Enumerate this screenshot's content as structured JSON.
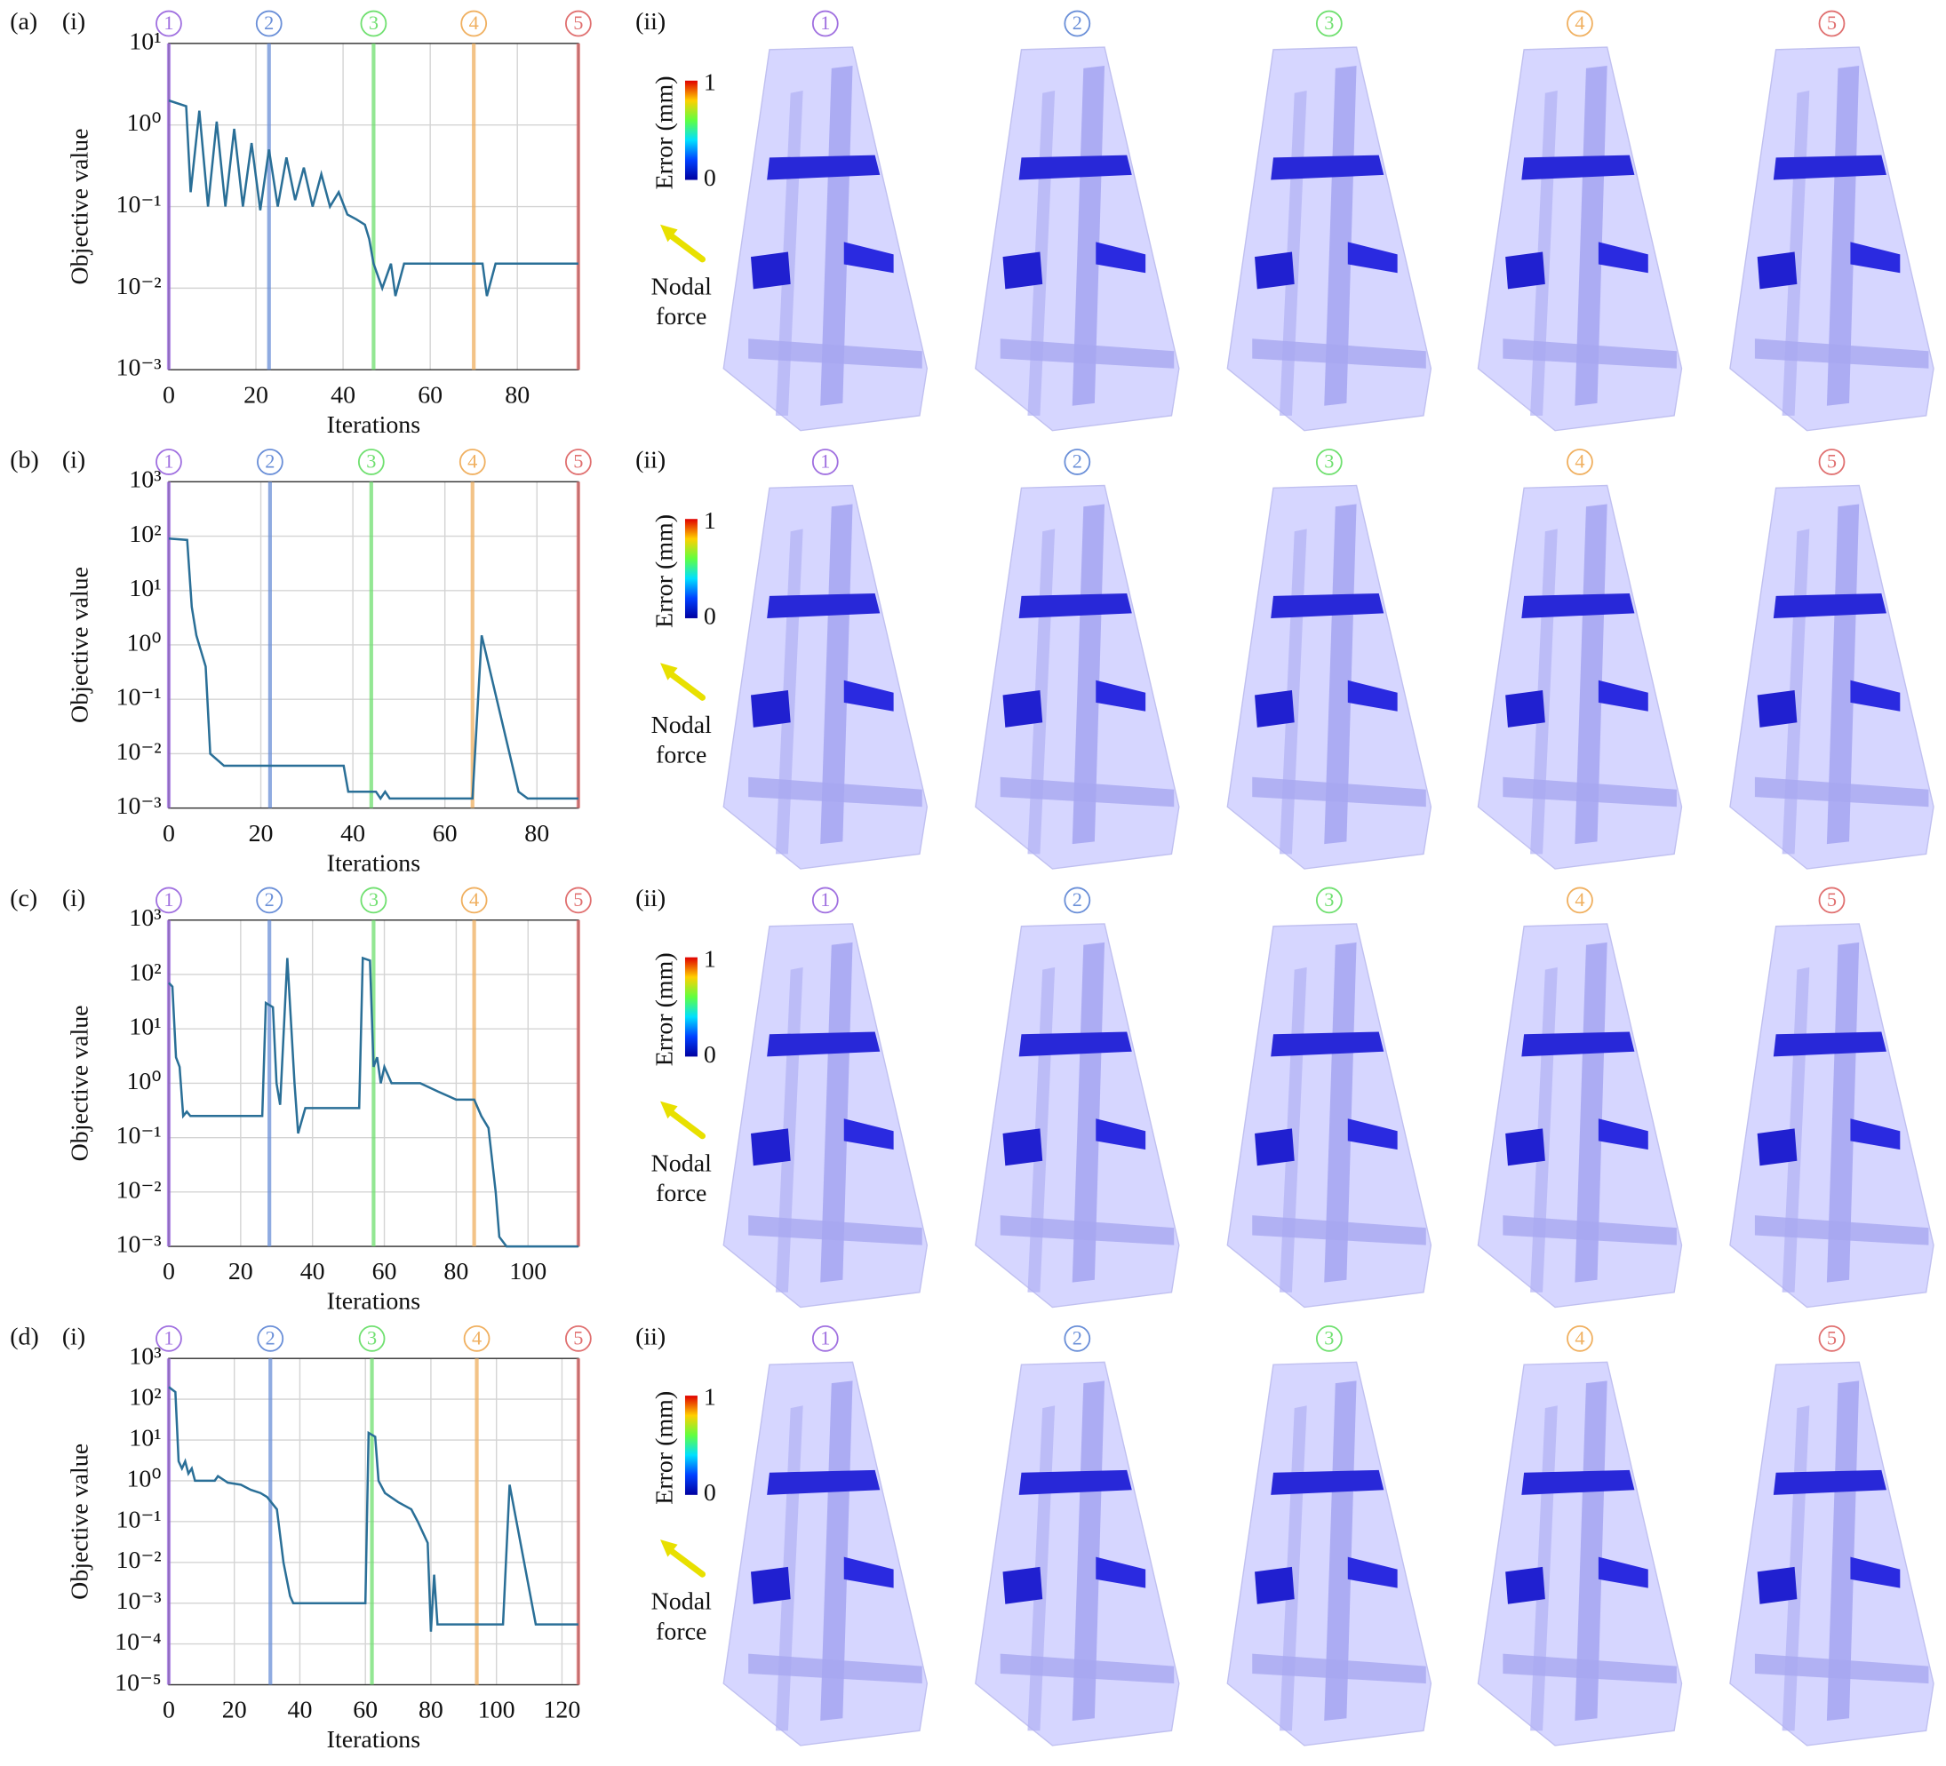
{
  "chart_data": [
    {
      "type": "line",
      "panel": "(a)",
      "subpanels": [
        "(i)",
        "(ii)"
      ],
      "xlabel": "Iterations",
      "ylabel": "Objective value",
      "yscale": "log",
      "grid": true,
      "color": "#2a6f97",
      "xlim": [
        0,
        94
      ],
      "xticks": [
        0,
        20,
        40,
        60,
        80
      ],
      "ylim": [
        0.001,
        10
      ],
      "yticks": [
        {
          "value": 0.001,
          "label": "10⁻³"
        },
        {
          "value": 0.01,
          "label": "10⁻²"
        },
        {
          "value": 0.1,
          "label": "10⁻¹"
        },
        {
          "value": 1,
          "label": "10⁰"
        },
        {
          "value": 10,
          "label": "10¹"
        }
      ],
      "markers": [
        {
          "label": "1",
          "x": 0,
          "color": "#a070e0"
        },
        {
          "label": "2",
          "x": 23,
          "color": "#6a8fd8"
        },
        {
          "label": "3",
          "x": 47,
          "color": "#70e070"
        },
        {
          "label": "4",
          "x": 70,
          "color": "#f0b060"
        },
        {
          "label": "5",
          "x": 94,
          "color": "#e07070"
        }
      ],
      "colorbar": {
        "label": "Error (mm)",
        "max": "1",
        "min": "0"
      },
      "legend": "Nodal force",
      "x": [
        0,
        4,
        5,
        7,
        9,
        11,
        13,
        15,
        17,
        19,
        21,
        23,
        25,
        27,
        29,
        31,
        33,
        35,
        37,
        39,
        41,
        43,
        45,
        46,
        47,
        49,
        51,
        52,
        54,
        72,
        73,
        75,
        94
      ],
      "values": [
        2,
        1.7,
        0.15,
        1.5,
        0.1,
        1.1,
        0.1,
        0.9,
        0.1,
        0.6,
        0.09,
        0.5,
        0.1,
        0.4,
        0.12,
        0.3,
        0.1,
        0.25,
        0.1,
        0.15,
        0.08,
        0.07,
        0.06,
        0.04,
        0.02,
        0.01,
        0.02,
        0.008,
        0.02,
        0.02,
        0.008,
        0.02,
        0.02
      ]
    },
    {
      "type": "line",
      "panel": "(b)",
      "subpanels": [
        "(i)",
        "(ii)"
      ],
      "xlabel": "Iterations",
      "ylabel": "Objective value",
      "yscale": "log",
      "grid": true,
      "color": "#2a6f97",
      "xlim": [
        0,
        89
      ],
      "xticks": [
        0,
        20,
        40,
        60,
        80
      ],
      "ylim": [
        0.001,
        1000
      ],
      "yticks": [
        {
          "value": 0.001,
          "label": "10⁻³"
        },
        {
          "value": 0.01,
          "label": "10⁻²"
        },
        {
          "value": 0.1,
          "label": "10⁻¹"
        },
        {
          "value": 1,
          "label": "10⁰"
        },
        {
          "value": 10,
          "label": "10¹"
        },
        {
          "value": 100,
          "label": "10²"
        },
        {
          "value": 1000,
          "label": "10³"
        }
      ],
      "markers": [
        {
          "label": "1",
          "x": 0,
          "color": "#a070e0"
        },
        {
          "label": "2",
          "x": 22,
          "color": "#6a8fd8"
        },
        {
          "label": "3",
          "x": 44,
          "color": "#70e070"
        },
        {
          "label": "4",
          "x": 66,
          "color": "#f0b060"
        },
        {
          "label": "5",
          "x": 89,
          "color": "#e07070"
        }
      ],
      "colorbar": {
        "label": "Error (mm)",
        "max": "1",
        "min": "0"
      },
      "legend": "Nodal force",
      "x": [
        0,
        4,
        5,
        6,
        8,
        9,
        12,
        38,
        39,
        45,
        46,
        47,
        48,
        66,
        68,
        76,
        78,
        89
      ],
      "values": [
        90,
        85,
        5,
        1.5,
        0.4,
        0.01,
        0.006,
        0.006,
        0.002,
        0.002,
        0.0015,
        0.002,
        0.0015,
        0.0015,
        1.5,
        0.002,
        0.0015,
        0.0015
      ]
    },
    {
      "type": "line",
      "panel": "(c)",
      "subpanels": [
        "(i)",
        "(ii)"
      ],
      "xlabel": "Iterations",
      "ylabel": "Objective value",
      "yscale": "log",
      "grid": true,
      "color": "#2a6f97",
      "xlim": [
        0,
        114
      ],
      "xticks": [
        0,
        20,
        40,
        60,
        80,
        100
      ],
      "ylim": [
        0.001,
        1000
      ],
      "yticks": [
        {
          "value": 0.001,
          "label": "10⁻³"
        },
        {
          "value": 0.01,
          "label": "10⁻²"
        },
        {
          "value": 0.1,
          "label": "10⁻¹"
        },
        {
          "value": 1,
          "label": "10⁰"
        },
        {
          "value": 10,
          "label": "10¹"
        },
        {
          "value": 100,
          "label": "10²"
        },
        {
          "value": 1000,
          "label": "10³"
        }
      ],
      "markers": [
        {
          "label": "1",
          "x": 0,
          "color": "#a070e0"
        },
        {
          "label": "2",
          "x": 28,
          "color": "#6a8fd8"
        },
        {
          "label": "3",
          "x": 57,
          "color": "#70e070"
        },
        {
          "label": "4",
          "x": 85,
          "color": "#f0b060"
        },
        {
          "label": "5",
          "x": 114,
          "color": "#e07070"
        }
      ],
      "colorbar": {
        "label": "Error (mm)",
        "max": "1",
        "min": "0"
      },
      "legend": "Nodal force",
      "x": [
        0,
        1,
        2,
        3,
        4,
        5,
        6,
        26,
        27,
        29,
        30,
        31,
        33,
        35,
        36,
        38,
        53,
        54,
        56,
        57,
        58,
        59,
        60,
        62,
        70,
        75,
        80,
        85,
        87,
        89,
        91,
        92,
        94,
        114
      ],
      "values": [
        70,
        60,
        3,
        2,
        0.25,
        0.3,
        0.25,
        0.25,
        30,
        25,
        1,
        0.4,
        200,
        1,
        0.12,
        0.35,
        0.35,
        200,
        180,
        2,
        3,
        1,
        2,
        1,
        1,
        0.7,
        0.5,
        0.5,
        0.25,
        0.15,
        0.01,
        0.0015,
        0.001,
        0.001
      ]
    },
    {
      "type": "line",
      "panel": "(d)",
      "subpanels": [
        "(i)",
        "(ii)"
      ],
      "xlabel": "Iterations",
      "ylabel": "Objective value",
      "yscale": "log",
      "grid": true,
      "color": "#2a6f97",
      "xlim": [
        0,
        125
      ],
      "xticks": [
        0,
        20,
        40,
        60,
        80,
        100,
        120
      ],
      "ylim": [
        1e-05,
        1000
      ],
      "yticks": [
        {
          "value": 1e-05,
          "label": "10⁻⁵"
        },
        {
          "value": 0.0001,
          "label": "10⁻⁴"
        },
        {
          "value": 0.001,
          "label": "10⁻³"
        },
        {
          "value": 0.01,
          "label": "10⁻²"
        },
        {
          "value": 0.1,
          "label": "10⁻¹"
        },
        {
          "value": 1,
          "label": "10⁰"
        },
        {
          "value": 10,
          "label": "10¹"
        },
        {
          "value": 100,
          "label": "10²"
        },
        {
          "value": 1000,
          "label": "10³"
        }
      ],
      "markers": [
        {
          "label": "1",
          "x": 0,
          "color": "#a070e0"
        },
        {
          "label": "2",
          "x": 31,
          "color": "#6a8fd8"
        },
        {
          "label": "3",
          "x": 62,
          "color": "#70e070"
        },
        {
          "label": "4",
          "x": 94,
          "color": "#f0b060"
        },
        {
          "label": "5",
          "x": 125,
          "color": "#e07070"
        }
      ],
      "colorbar": {
        "label": "Error (mm)",
        "max": "1",
        "min": "0"
      },
      "legend": "Nodal force",
      "x": [
        0,
        2,
        3,
        4,
        5,
        6,
        7,
        8,
        14,
        15,
        18,
        22,
        25,
        28,
        30,
        33,
        35,
        37,
        38,
        60,
        61,
        63,
        64,
        66,
        70,
        74,
        76,
        79,
        80,
        81,
        82,
        102,
        104,
        112,
        125
      ],
      "values": [
        200,
        150,
        3,
        2,
        3,
        1.5,
        2,
        1,
        1,
        1.3,
        0.9,
        0.8,
        0.6,
        0.5,
        0.4,
        0.2,
        0.01,
        0.0015,
        0.001,
        0.001,
        15,
        12,
        1,
        0.5,
        0.3,
        0.2,
        0.1,
        0.03,
        0.0002,
        0.005,
        0.0003,
        0.0003,
        0.8,
        0.0003,
        0.0003
      ]
    }
  ]
}
